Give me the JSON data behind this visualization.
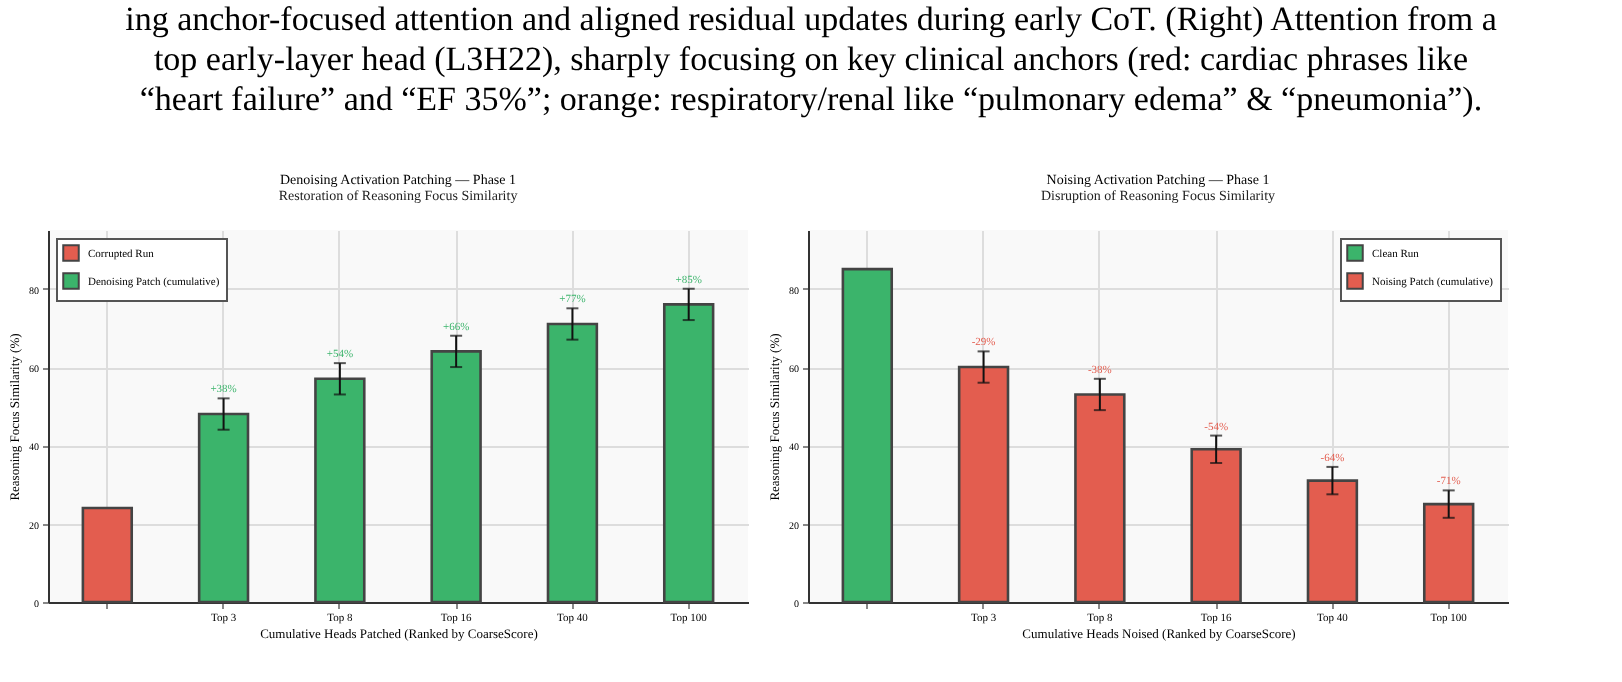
{
  "chart_data": [
    {
      "type": "other",
      "annotations": [
        "ing anchor-focused attention and aligned residual updates during early CoT. (Right) Attention from a",
        "top early-layer head (L3H22), sharply focusing on key clinical anchors (red: cardiac phrases like",
        "“heart failure” and “EF 35%”; orange: respiratory/renal like “pulmonary edema” & “pneumonia”)."
      ]
    },
    {
      "type": "bar",
      "title": "Denoising Activation Patching — Phase 1",
      "subtitle": "Restoration of Reasoning Focus Similarity",
      "xlabel": "Cumulative Heads Patched (Ranked by CoarseScore)",
      "ylabel": "Reasoning Focus Similarity (%)",
      "categories": [
        null,
        "Top 3",
        "Top 8",
        "Top 16",
        "Top 40",
        "Top 100"
      ],
      "series": [
        {
          "name": "Corrupted Run",
          "color": "#e35d4f",
          "values": [
            24,
            null,
            null,
            null,
            null,
            null
          ]
        },
        {
          "name": "Denoising Patch (cumulative)",
          "color": "#3bb46b",
          "values": [
            null,
            48,
            57,
            64,
            71,
            76
          ],
          "errors": [
            null,
            4,
            4,
            4,
            4,
            4
          ]
        }
      ],
      "annotations": [
        {
          "text": "+38%",
          "x": "Top 3",
          "y": 52
        },
        {
          "text": "+54%",
          "x": "Top 8",
          "y": 61
        },
        {
          "text": "+66%",
          "x": "Top 16",
          "y": 68
        },
        {
          "text": "+77%",
          "x": "Top 40",
          "y": 75
        },
        {
          "text": "+85%",
          "x": "Top 100",
          "y": 80
        }
      ],
      "ylim": [
        0,
        95
      ],
      "yticks": [
        0,
        20,
        40,
        60,
        80
      ],
      "grid": true,
      "legend": "top left"
    },
    {
      "type": "bar",
      "title": "Noising Activation Patching — Phase 1",
      "subtitle": "Disruption of Reasoning Focus Similarity",
      "xlabel": "Cumulative Heads Noised (Ranked by CoarseScore)",
      "ylabel": "Reasoning Focus Similarity (%)",
      "categories": [
        null,
        "Top 3",
        "Top 8",
        "Top 16",
        "Top 40",
        "Top 100"
      ],
      "series": [
        {
          "name": "Clean Run",
          "color": "#3bb46b",
          "values": [
            85,
            null,
            null,
            null,
            null,
            null
          ]
        },
        {
          "name": "Noising Patch (cumulative)",
          "color": "#e35d4f",
          "values": [
            null,
            60,
            53,
            39,
            31,
            25
          ],
          "errors": [
            null,
            4,
            4,
            3.5,
            3.5,
            3.5
          ]
        }
      ],
      "annotations": [
        {
          "text": "-29%",
          "x": "Top 3",
          "y": 64
        },
        {
          "text": "-38%",
          "x": "Top 8",
          "y": 57
        },
        {
          "text": "-54%",
          "x": "Top 16",
          "y": 42.5
        },
        {
          "text": "-64%",
          "x": "Top 40",
          "y": 34.5
        },
        {
          "text": "-71%",
          "x": "Top 100",
          "y": 28.5
        }
      ],
      "ylim": [
        0,
        95
      ],
      "yticks": [
        0,
        20,
        40,
        60,
        80
      ],
      "grid": true,
      "legend": "top right"
    }
  ]
}
